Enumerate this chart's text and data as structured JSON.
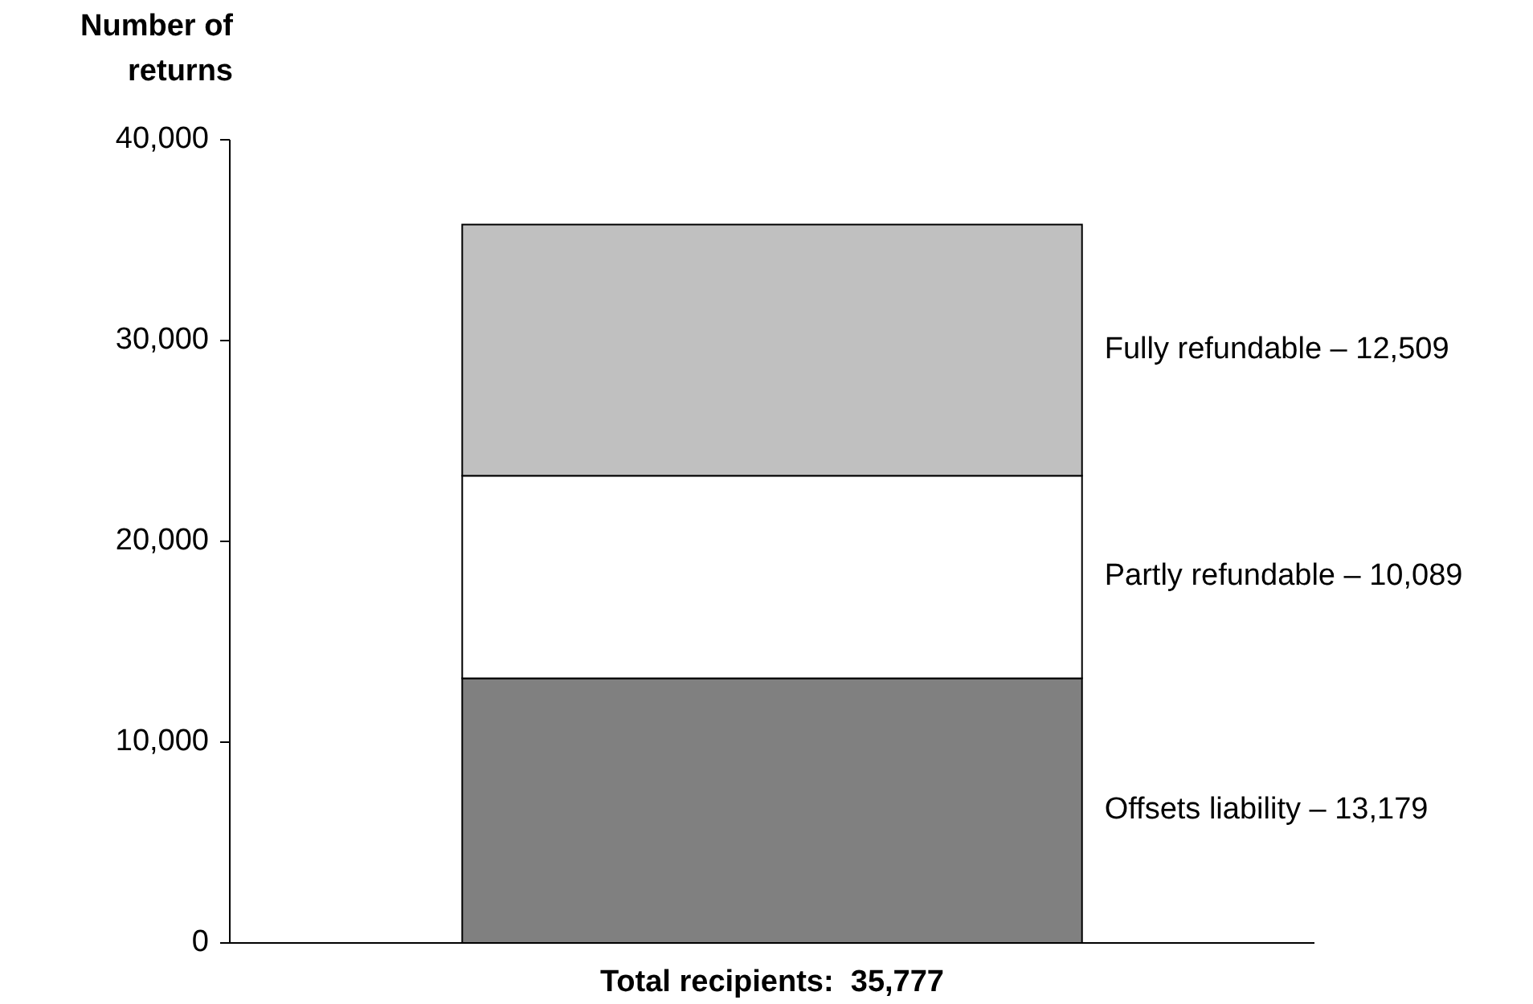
{
  "chart_data": {
    "type": "bar",
    "stacked": true,
    "ylabel": "Number of\nreturns",
    "categories": [
      "Total recipients:  35,777"
    ],
    "series": [
      {
        "name": "Offsets liability – 13,179",
        "color": "#808080",
        "values": [
          13179
        ]
      },
      {
        "name": "Partly refundable – 10,089",
        "color": "#ffffff",
        "values": [
          10089
        ]
      },
      {
        "name": "Fully refundable – 12,509",
        "color": "#c0c0c0",
        "values": [
          12509
        ]
      }
    ],
    "ylim": [
      0,
      40000
    ],
    "yticks": [
      {
        "value": 0,
        "label": "0"
      },
      {
        "value": 10000,
        "label": "10,000"
      },
      {
        "value": 20000,
        "label": "20,000"
      },
      {
        "value": 30000,
        "label": "30,000"
      },
      {
        "value": 40000,
        "label": "40,000"
      }
    ],
    "grid": false,
    "legend": false
  }
}
